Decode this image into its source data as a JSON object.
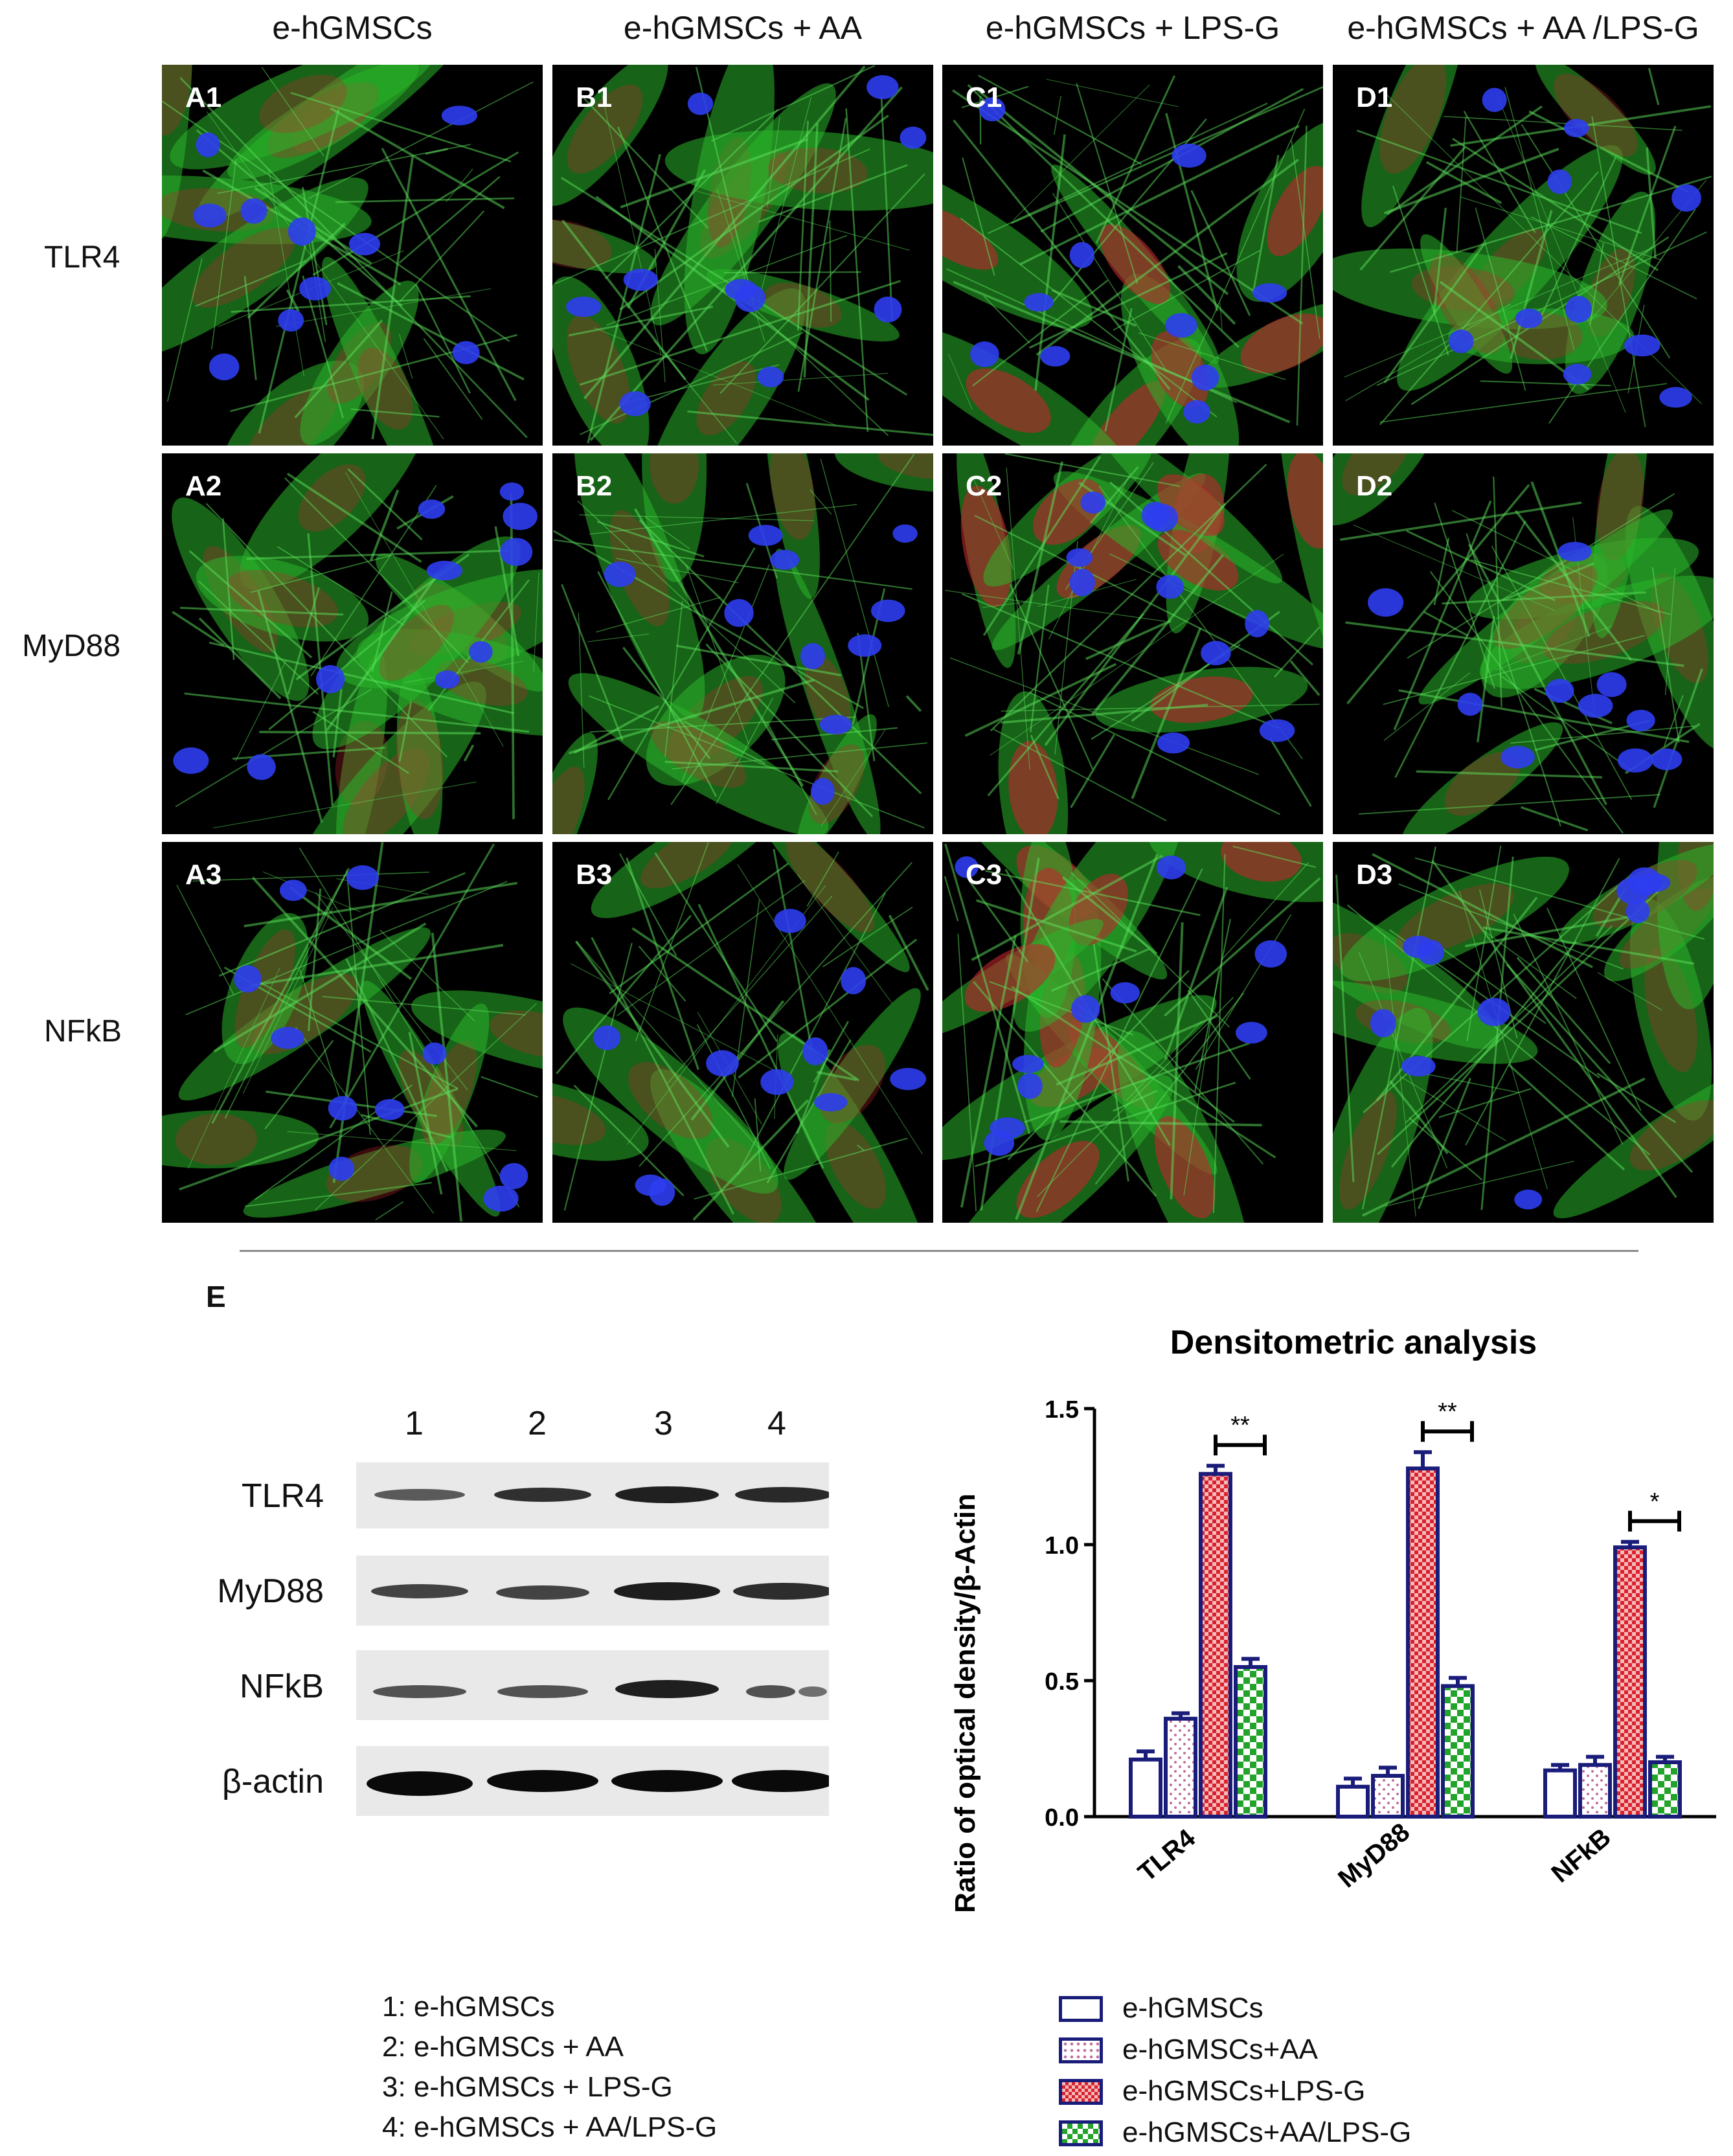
{
  "figure": {
    "column_headers": [
      "e-hGMSCs",
      "e-hGMSCs + AA",
      "e-hGMSCs + LPS-G",
      "e-hGMSCs + AA /LPS-G"
    ],
    "row_headers": [
      "TLR4",
      "MyD88",
      "NFkB"
    ],
    "panels": [
      [
        "A1",
        "B1",
        "C1",
        "D1"
      ],
      [
        "A2",
        "B2",
        "C2",
        "D2"
      ],
      [
        "A3",
        "B3",
        "C3",
        "D3"
      ]
    ],
    "colors": {
      "actin": "#29b52a",
      "nucleus": "#2d3df0",
      "target": "#c0272d",
      "bar_outline": "#1a1c7a"
    }
  },
  "panel_e": {
    "label": "E",
    "lane_numbers": [
      "1",
      "2",
      "3",
      "4"
    ],
    "blot_labels": [
      "TLR4",
      "MyD88",
      "NFkB",
      "β-actin"
    ],
    "lane_legend": [
      "1: e-hGMSCs",
      "2: e-hGMSCs + AA",
      "3: e-hGMSCs + LPS-G",
      "4: e-hGMSCs + AA/LPS-G"
    ]
  },
  "chart_data": {
    "type": "bar",
    "title": "Densitometric analysis",
    "ylabel": "Ratio of optical density/β-Actin",
    "xlabel": "",
    "categories": [
      "TLR4",
      "MyD88",
      "NFkB"
    ],
    "ylim": [
      0,
      1.5
    ],
    "yticks": [
      "0.0",
      "0.5",
      "1.0",
      "1.5"
    ],
    "series": [
      {
        "name": "e-hGMSCs",
        "values": [
          0.21,
          0.11,
          0.17
        ],
        "errors": [
          0.03,
          0.03,
          0.02
        ],
        "pattern": "open"
      },
      {
        "name": "e-hGMSCs+AA",
        "values": [
          0.36,
          0.15,
          0.19
        ],
        "errors": [
          0.02,
          0.03,
          0.03
        ],
        "pattern": "dots"
      },
      {
        "name": "e-hGMSCs+LPS-G",
        "values": [
          1.26,
          1.28,
          0.99
        ],
        "errors": [
          0.03,
          0.06,
          0.02
        ],
        "pattern": "red-check"
      },
      {
        "name": "e-hGMSCs+AA/LPS-G",
        "values": [
          0.55,
          0.48,
          0.2
        ],
        "errors": [
          0.03,
          0.03,
          0.02
        ],
        "pattern": "green-check"
      }
    ],
    "significance": [
      "**",
      "**",
      "*"
    ],
    "legend_position": "bottom"
  }
}
